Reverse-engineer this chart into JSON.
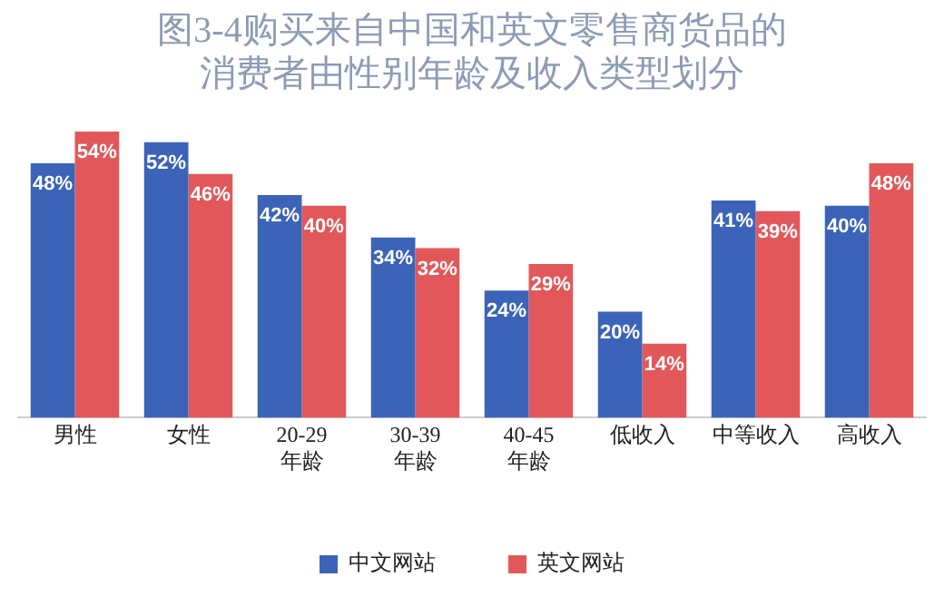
{
  "chart_data": {
    "type": "bar",
    "title": [
      "图3-4购买来自中国和英文零售商货品的",
      "消费者由性别年龄及收入类型划分"
    ],
    "categories": [
      "男性",
      "女性",
      "20-29年龄",
      "30-39年龄",
      "40-45年龄",
      "低收入",
      "中等收入",
      "高收入"
    ],
    "series": [
      {
        "name": "中文网站",
        "color": "#3b63b8",
        "values": [
          48,
          52,
          42,
          34,
          24,
          20,
          41,
          40
        ],
        "value_labels": [
          "48%",
          "52%",
          "42%",
          "34%",
          "24%",
          "20%",
          "41%",
          "40%"
        ]
      },
      {
        "name": "英文网站",
        "color": "#e2585a",
        "values": [
          54,
          46,
          40,
          32,
          29,
          14,
          39,
          48
        ],
        "value_labels": [
          "54%",
          "46%",
          "40%",
          "32%",
          "29%",
          "14%",
          "39%",
          "48%"
        ]
      }
    ],
    "legend": "bottom",
    "grid": false,
    "tick_labels": "x"
  }
}
